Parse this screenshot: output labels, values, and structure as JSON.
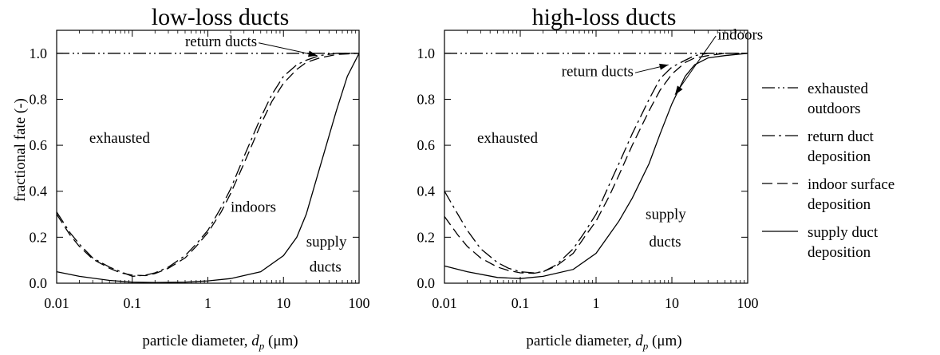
{
  "chart_data": [
    {
      "type": "line",
      "title": "low-loss ducts",
      "xlabel": "particle diameter, d_p (μm)",
      "xlabel_parts": {
        "main": "particle diameter, ",
        "symbol": "d",
        "subscript": "p",
        "unit": " (μm)"
      },
      "ylabel": "fractional fate (-)",
      "xscale": "log",
      "xlim": [
        0.01,
        100
      ],
      "ylim": [
        0,
        1.1
      ],
      "xticks": [
        "0.01",
        "0.1",
        "1",
        "10",
        "100"
      ],
      "yticks": [
        "0.0",
        "0.2",
        "0.4",
        "0.6",
        "0.8",
        "1.0"
      ],
      "grid": false,
      "annotations": [
        {
          "text": "return ducts",
          "x": 0.5,
          "y": 1.03,
          "arrow_to": [
            28,
            0.99
          ]
        },
        {
          "text": "exhausted",
          "x": 0.027,
          "y": 0.61
        },
        {
          "text": "indoors",
          "x": 2.0,
          "y": 0.31
        },
        {
          "text": "supply",
          "x": 20,
          "y": 0.16
        },
        {
          "text": "ducts",
          "x": 22,
          "y": 0.05
        }
      ],
      "series": [
        {
          "style": "dash-dot-dot",
          "x": [
            0.01,
            100
          ],
          "y": [
            1.0,
            1.0
          ]
        },
        {
          "style": "dash-dot",
          "x": [
            0.01,
            0.015,
            0.02,
            0.03,
            0.05,
            0.07,
            0.1,
            0.15,
            0.2,
            0.3,
            0.5,
            0.7,
            1,
            1.5,
            2,
            3,
            5,
            7,
            10,
            15,
            20,
            30,
            50,
            100
          ],
          "y": [
            0.31,
            0.22,
            0.17,
            0.11,
            0.07,
            0.05,
            0.03,
            0.035,
            0.045,
            0.07,
            0.12,
            0.17,
            0.23,
            0.33,
            0.41,
            0.55,
            0.72,
            0.82,
            0.9,
            0.95,
            0.97,
            0.99,
            1.0,
            1.0
          ]
        },
        {
          "style": "dashed",
          "x": [
            0.01,
            0.015,
            0.02,
            0.03,
            0.05,
            0.07,
            0.1,
            0.15,
            0.2,
            0.3,
            0.5,
            0.7,
            1,
            1.5,
            2,
            3,
            5,
            7,
            10,
            15,
            20,
            30,
            50,
            100
          ],
          "y": [
            0.3,
            0.21,
            0.16,
            0.105,
            0.065,
            0.045,
            0.035,
            0.033,
            0.042,
            0.065,
            0.11,
            0.16,
            0.22,
            0.31,
            0.39,
            0.52,
            0.69,
            0.79,
            0.87,
            0.93,
            0.96,
            0.98,
            0.995,
            1.0
          ]
        },
        {
          "style": "solid",
          "x": [
            0.01,
            0.02,
            0.05,
            0.1,
            0.2,
            0.5,
            1,
            2,
            5,
            10,
            15,
            20,
            30,
            50,
            70,
            100
          ],
          "y": [
            0.05,
            0.03,
            0.012,
            0.005,
            0.003,
            0.005,
            0.01,
            0.02,
            0.05,
            0.12,
            0.2,
            0.3,
            0.5,
            0.75,
            0.9,
            1.0
          ]
        }
      ]
    },
    {
      "type": "line",
      "title": "high-loss ducts",
      "xlabel": "particle diameter, d_p (μm)",
      "xlabel_parts": {
        "main": "particle diameter, ",
        "symbol": "d",
        "subscript": "p",
        "unit": " (μm)"
      },
      "xscale": "log",
      "xlim": [
        0.01,
        100
      ],
      "ylim": [
        0,
        1.1
      ],
      "xticks": [
        "0.01",
        "0.1",
        "1",
        "10",
        "100"
      ],
      "yticks": [
        "0.0",
        "0.2",
        "0.4",
        "0.6",
        "0.8",
        "1.0"
      ],
      "grid": false,
      "annotations": [
        {
          "text": "return ducts",
          "x": 0.35,
          "y": 0.9,
          "arrow_to": [
            9,
            0.95
          ]
        },
        {
          "text": "indoors",
          "x": 40,
          "y": 1.06,
          "arrow_to": [
            11,
            0.82
          ]
        },
        {
          "text": "exhausted",
          "x": 0.027,
          "y": 0.61
        },
        {
          "text": "supply",
          "x": 4.5,
          "y": 0.28
        },
        {
          "text": "ducts",
          "x": 5,
          "y": 0.16
        }
      ],
      "series": [
        {
          "style": "dash-dot-dot",
          "x": [
            0.01,
            100
          ],
          "y": [
            1.0,
            1.0
          ]
        },
        {
          "style": "dash-dot",
          "x": [
            0.01,
            0.015,
            0.02,
            0.03,
            0.05,
            0.07,
            0.1,
            0.15,
            0.2,
            0.3,
            0.5,
            0.7,
            1,
            1.5,
            2,
            3,
            5,
            7,
            10,
            15,
            20,
            30,
            100
          ],
          "y": [
            0.4,
            0.3,
            0.23,
            0.15,
            0.09,
            0.065,
            0.05,
            0.045,
            0.05,
            0.08,
            0.15,
            0.22,
            0.3,
            0.43,
            0.52,
            0.65,
            0.8,
            0.89,
            0.94,
            0.97,
            0.99,
            1.0,
            1.0
          ]
        },
        {
          "style": "dashed",
          "x": [
            0.01,
            0.015,
            0.02,
            0.03,
            0.05,
            0.07,
            0.1,
            0.15,
            0.2,
            0.3,
            0.5,
            0.7,
            1,
            1.5,
            2,
            3,
            5,
            7,
            10,
            15,
            20,
            30,
            50,
            100
          ],
          "y": [
            0.29,
            0.21,
            0.16,
            0.11,
            0.07,
            0.055,
            0.045,
            0.043,
            0.05,
            0.075,
            0.13,
            0.2,
            0.27,
            0.38,
            0.47,
            0.6,
            0.75,
            0.84,
            0.91,
            0.96,
            0.98,
            0.99,
            1.0,
            1.0
          ]
        },
        {
          "style": "solid",
          "x": [
            0.01,
            0.02,
            0.05,
            0.1,
            0.2,
            0.5,
            1,
            2,
            3,
            5,
            7,
            10,
            15,
            20,
            30,
            50,
            100
          ],
          "y": [
            0.075,
            0.05,
            0.025,
            0.02,
            0.03,
            0.06,
            0.13,
            0.27,
            0.37,
            0.52,
            0.65,
            0.78,
            0.9,
            0.95,
            0.98,
            0.99,
            1.0
          ]
        }
      ]
    }
  ],
  "legend": {
    "placement": "right",
    "items": [
      {
        "style": "dash-dot-dot",
        "lines": [
          "exhausted",
          "outdoors"
        ]
      },
      {
        "style": "dash-dot",
        "lines": [
          "return duct",
          "deposition"
        ]
      },
      {
        "style": "dashed",
        "lines": [
          "indoor surface",
          "deposition"
        ]
      },
      {
        "style": "solid",
        "lines": [
          "supply duct",
          "deposition"
        ]
      }
    ]
  }
}
